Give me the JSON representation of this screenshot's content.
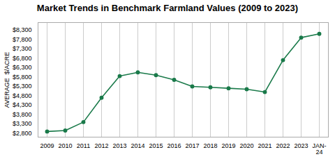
{
  "chart_data": {
    "type": "line",
    "title": "Market Trends in Benchmark Farmland Values (2009 to 2023)",
    "categories": [
      "2009",
      "2010",
      "2011",
      "2012",
      "2013",
      "2014",
      "2015",
      "2016",
      "2017",
      "2018",
      "2019",
      "2020",
      "2021",
      "2022",
      "2023",
      "JAN-\n24"
    ],
    "values": [
      2900,
      2950,
      3400,
      4700,
      5850,
      6050,
      5900,
      5650,
      5300,
      5250,
      5200,
      5150,
      5000,
      6700,
      7900,
      8100
    ],
    "ylabel": "AVERAGE  $/ACRE",
    "color": "#1a7a4a",
    "marker": "circle",
    "grid": "x",
    "ylim": [
      2600,
      8700
    ],
    "yticks": [
      {
        "value": 2800,
        "label": "$2,800"
      },
      {
        "value": 3300,
        "label": "$3,300"
      },
      {
        "value": 3800,
        "label": "$3,800"
      },
      {
        "value": 4300,
        "label": "$4,300"
      },
      {
        "value": 4800,
        "label": "$4,800"
      },
      {
        "value": 5300,
        "label": "$5,300"
      },
      {
        "value": 5800,
        "label": "$5,800"
      },
      {
        "value": 6300,
        "label": "$6,300"
      },
      {
        "value": 6800,
        "label": "$6,800"
      },
      {
        "value": 7300,
        "label": "$7,300"
      },
      {
        "value": 7800,
        "label": "$7,800"
      },
      {
        "value": 8300,
        "label": "$8,300"
      }
    ]
  }
}
